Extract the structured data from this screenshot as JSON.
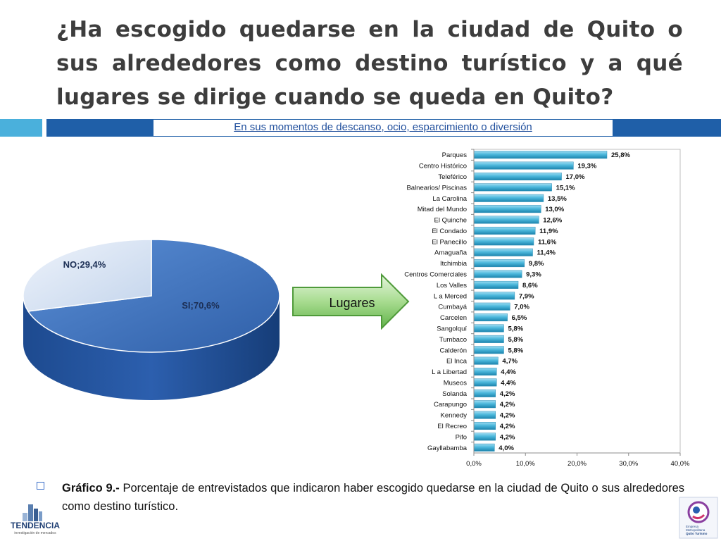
{
  "slide": {
    "title": "¿Ha escogido quedarse en la ciudad de Quito o sus alrededores como destino turístico y a qué lugares se dirige cuando se queda en Quito?",
    "subtitle": "En sus momentos de descanso, ocio, esparcimiento o diversión",
    "arrow_label": "Lugares",
    "caption_bold": "Gráfico 9.-",
    "caption_text": " Porcentaje de entrevistados que indicaron haber escogido quedarse en la ciudad de Quito o sus alrededores como destino turístico.",
    "logo_left_name": "TENDENCIA",
    "logo_left_tagline": "investigación de mercados",
    "logo_right_lines": [
      "Empresa",
      "Metropolitana",
      "Quito Turismo"
    ]
  },
  "colors": {
    "title": "#3d3d3d",
    "subtitle_bar": "#1f5fa8",
    "subtitle_bar_left": "#4ab0dc",
    "subtitle_text": "#1f4e9c",
    "pie_si": "#3f74c0",
    "pie_no": "#d6e2f2",
    "bar": "#4cb8dc",
    "arrow": "#6cc05a"
  },
  "chart_data": [
    {
      "type": "pie",
      "title": "",
      "labels": [
        "SI",
        "NO"
      ],
      "values": [
        70.6,
        29.4
      ],
      "data_labels": [
        "SI;70,6%",
        "NO;29,4%"
      ]
    },
    {
      "type": "bar",
      "orientation": "horizontal",
      "title": "",
      "categories": [
        "Parques",
        "Centro Histórico",
        "Teleférico",
        "Balnearios/ Piscinas",
        "La Carolina",
        "Mitad del Mundo",
        "El Quinche",
        "El Condado",
        "El Panecillo",
        "Amaguaña",
        "Itchimbia",
        "Centros Comerciales",
        "Los Valles",
        "L a Merced",
        "Cumbayá",
        "Carcelen",
        "Sangolquí",
        "Tumbaco",
        "Calderón",
        "El Inca",
        "L a Libertad",
        "Museos",
        "Solanda",
        "Carapungo",
        "Kennedy",
        "El Recreo",
        "Pifo",
        "Gayllabamba"
      ],
      "values": [
        25.8,
        19.3,
        17.0,
        15.1,
        13.5,
        13.0,
        12.6,
        11.9,
        11.6,
        11.4,
        9.8,
        9.3,
        8.6,
        7.9,
        7.0,
        6.5,
        5.8,
        5.8,
        5.8,
        4.7,
        4.4,
        4.4,
        4.2,
        4.2,
        4.2,
        4.2,
        4.2,
        4.0
      ],
      "data_labels": [
        "25,8%",
        "19,3%",
        "17,0%",
        "15,1%",
        "13,5%",
        "13,0%",
        "12,6%",
        "11,9%",
        "11,6%",
        "11,4%",
        "9,8%",
        "9,3%",
        "8,6%",
        "7,9%",
        "7,0%",
        "6,5%",
        "5,8%",
        "5,8%",
        "5,8%",
        "4,7%",
        "4,4%",
        "4,4%",
        "4,2%",
        "4,2%",
        "4,2%",
        "4,2%",
        "4,2%",
        "4,0%"
      ],
      "xlim": [
        0,
        40
      ],
      "xticks": [
        0,
        10,
        20,
        30,
        40
      ],
      "xtick_labels": [
        "0,0%",
        "10,0%",
        "20,0%",
        "30,0%",
        "40,0%"
      ],
      "xlabel": "",
      "ylabel": "",
      "grid": false,
      "legend": "none"
    }
  ]
}
